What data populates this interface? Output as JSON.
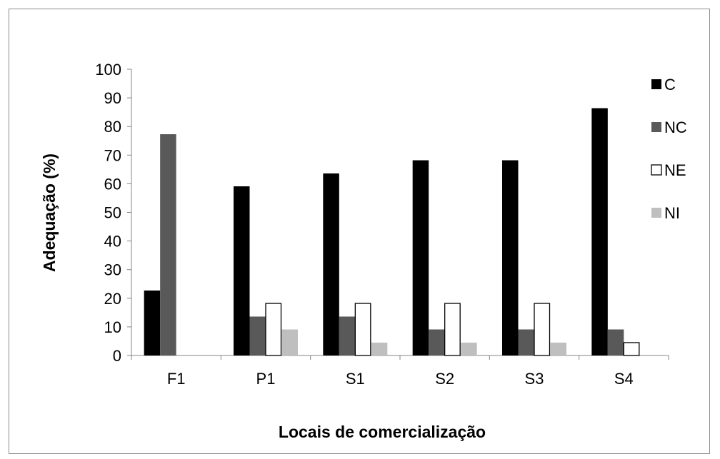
{
  "chart_data": {
    "type": "bar",
    "title": "",
    "xlabel": "Locais de comercialização",
    "ylabel": "Adequação (%)",
    "ylim": [
      0,
      100
    ],
    "yticks": [
      0,
      10,
      20,
      30,
      40,
      50,
      60,
      70,
      80,
      90,
      100
    ],
    "categories": [
      "F1",
      "P1",
      "S1",
      "S2",
      "S3",
      "S4"
    ],
    "series": [
      {
        "name": "C",
        "color": "#000000",
        "values": [
          22.7,
          59.1,
          63.6,
          68.2,
          68.2,
          86.4
        ]
      },
      {
        "name": "NC",
        "color": "#595959",
        "values": [
          77.3,
          13.6,
          13.6,
          9.1,
          9.1,
          9.1
        ]
      },
      {
        "name": "NE",
        "color": "#ffffff",
        "values": [
          0,
          18.2,
          18.2,
          18.2,
          18.2,
          4.5
        ]
      },
      {
        "name": "NI",
        "color": "#bfbfbf",
        "values": [
          0,
          9.1,
          4.5,
          4.5,
          4.5,
          0
        ]
      }
    ],
    "grid": false,
    "legend": "right"
  }
}
